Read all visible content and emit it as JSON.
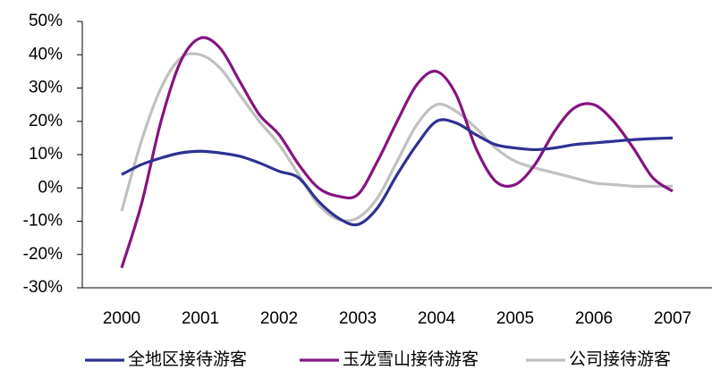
{
  "chart_data": {
    "type": "line",
    "x": [
      2000,
      2000.25,
      2000.5,
      2000.75,
      2001,
      2001.25,
      2001.5,
      2001.75,
      2002,
      2002.25,
      2002.5,
      2002.75,
      2003,
      2003.25,
      2003.5,
      2003.75,
      2004,
      2004.25,
      2004.5,
      2004.75,
      2005,
      2005.25,
      2005.5,
      2005.75,
      2006,
      2006.25,
      2006.5,
      2006.75,
      2007
    ],
    "xlim": [
      1999.5,
      2007.5
    ],
    "xticks": [
      2000,
      2001,
      2002,
      2003,
      2004,
      2005,
      2006,
      2007
    ],
    "ylim": [
      -30,
      50
    ],
    "yticks": [
      {
        "value": -30,
        "label": "-30%"
      },
      {
        "value": -20,
        "label": "-20%"
      },
      {
        "value": -10,
        "label": "-10%"
      },
      {
        "value": 0,
        "label": "0%"
      },
      {
        "value": 10,
        "label": "10%"
      },
      {
        "value": 20,
        "label": "20%"
      },
      {
        "value": 30,
        "label": "30%"
      },
      {
        "value": 40,
        "label": "40%"
      },
      {
        "value": 50,
        "label": "50%"
      }
    ],
    "legend": "bottom",
    "series": [
      {
        "name": "全地区接待游客",
        "color": "#2e3192",
        "values": [
          4,
          7,
          9,
          10.5,
          11,
          10.5,
          9.5,
          7.5,
          5,
          3,
          -4,
          -9,
          -11,
          -6,
          4,
          13,
          20,
          19.5,
          16,
          13,
          12,
          11.5,
          12,
          13,
          13.5,
          14,
          14.5,
          14.8,
          15
        ]
      },
      {
        "name": "玉龙雪山接待游客",
        "color": "#86147f",
        "values": [
          -24,
          -5,
          20,
          38,
          45,
          42,
          32,
          22,
          16,
          7,
          0,
          -2.5,
          -2,
          8,
          20,
          31,
          35,
          28,
          12,
          2,
          1,
          7,
          17,
          24,
          25,
          20,
          12,
          3,
          -1
        ]
      },
      {
        "name": "公司接待游客",
        "color": "#c0c0c0",
        "values": [
          -7,
          14,
          30,
          39,
          40,
          36,
          28,
          20,
          13,
          4,
          -5,
          -9.5,
          -9,
          -3,
          8,
          19,
          25,
          23,
          18,
          12,
          8,
          6,
          4.5,
          3,
          1.5,
          1,
          0.5,
          0.5,
          0.5
        ]
      }
    ]
  }
}
